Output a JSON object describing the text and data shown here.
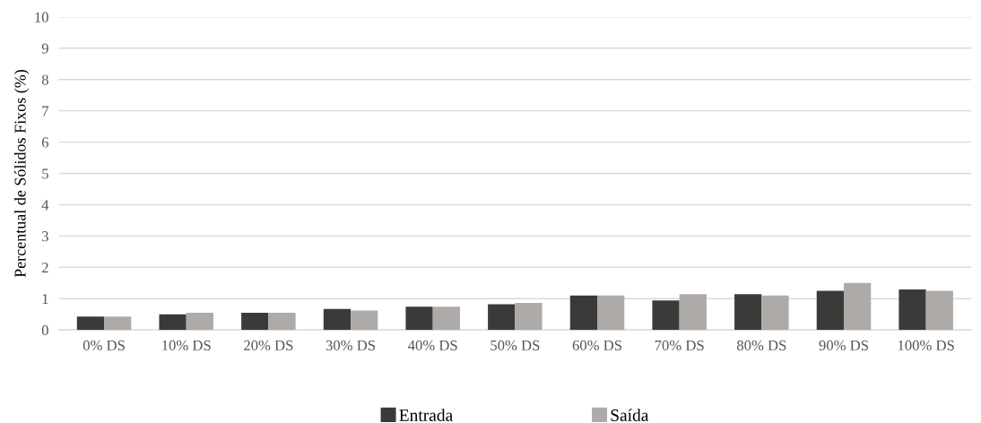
{
  "chart_data": {
    "type": "bar",
    "ylabel": "Percentual de Sólidos Fixos (%)",
    "categories": [
      "0% DS",
      "10% DS",
      "20% DS",
      "30% DS",
      "40% DS",
      "50% DS",
      "60% DS",
      "70% DS",
      "80% DS",
      "90% DS",
      "100% DS"
    ],
    "series": [
      {
        "name": "Entrada",
        "color": "#3a3a38",
        "values": [
          0.43,
          0.5,
          0.55,
          0.67,
          0.74,
          0.82,
          1.1,
          0.94,
          1.14,
          1.25,
          1.29
        ]
      },
      {
        "name": "Saída",
        "color": "#aeaaa8",
        "values": [
          0.43,
          0.55,
          0.55,
          0.62,
          0.74,
          0.86,
          1.1,
          1.14,
          1.1,
          1.5,
          1.25
        ]
      }
    ],
    "ylim": [
      0,
      10
    ],
    "yticks": [
      0,
      1,
      2,
      3,
      4,
      5,
      6,
      7,
      8,
      9,
      10
    ],
    "grid": "y",
    "legend": "bottom"
  }
}
